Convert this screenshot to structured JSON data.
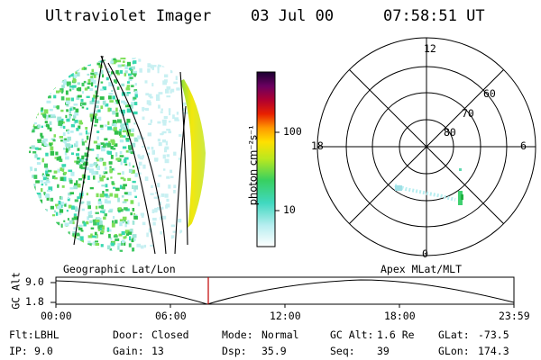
{
  "header": {
    "title": "Ultraviolet Imager",
    "date": "03 Jul 00",
    "time": "07:58:51 UT"
  },
  "colorbar": {
    "unit_label": "photon cm⁻²s⁻¹",
    "ticks": [
      "100",
      "10"
    ]
  },
  "polar_plot": {
    "clock_labels": {
      "top": "12",
      "left": "18",
      "right": "6",
      "bottom": "0"
    },
    "lat_labels": [
      "60",
      "70",
      "80"
    ]
  },
  "timeline": {
    "left_label": "Geographic Lat/Lon",
    "right_label": "Apex MLat/MLT",
    "axis_title": "GC Alt",
    "y_ticks": [
      "9.0",
      "1.8"
    ],
    "x_ticks": [
      "00:00",
      "06:00",
      "12:00",
      "18:00",
      "23:59"
    ]
  },
  "info": [
    {
      "label": "Flt:",
      "value": "LBHL"
    },
    {
      "label": "Door:",
      "value": "Closed"
    },
    {
      "label": "Mode:",
      "value": "Normal"
    },
    {
      "label": "GC Alt:",
      "value": "1.6 Re"
    },
    {
      "label": "GLat:",
      "value": "-73.5"
    },
    {
      "label": "IP:",
      "value": "9.0"
    },
    {
      "label": "Gain:",
      "value": "13"
    },
    {
      "label": "Dsp:",
      "value": "35.9"
    },
    {
      "label": "Seq:",
      "value": "39"
    },
    {
      "label": "GLon:",
      "value": "174.3"
    }
  ],
  "colors": {
    "marker": "#c00000",
    "aurora_low": "#7cd6e0",
    "aurora_high": "#f5d800"
  }
}
